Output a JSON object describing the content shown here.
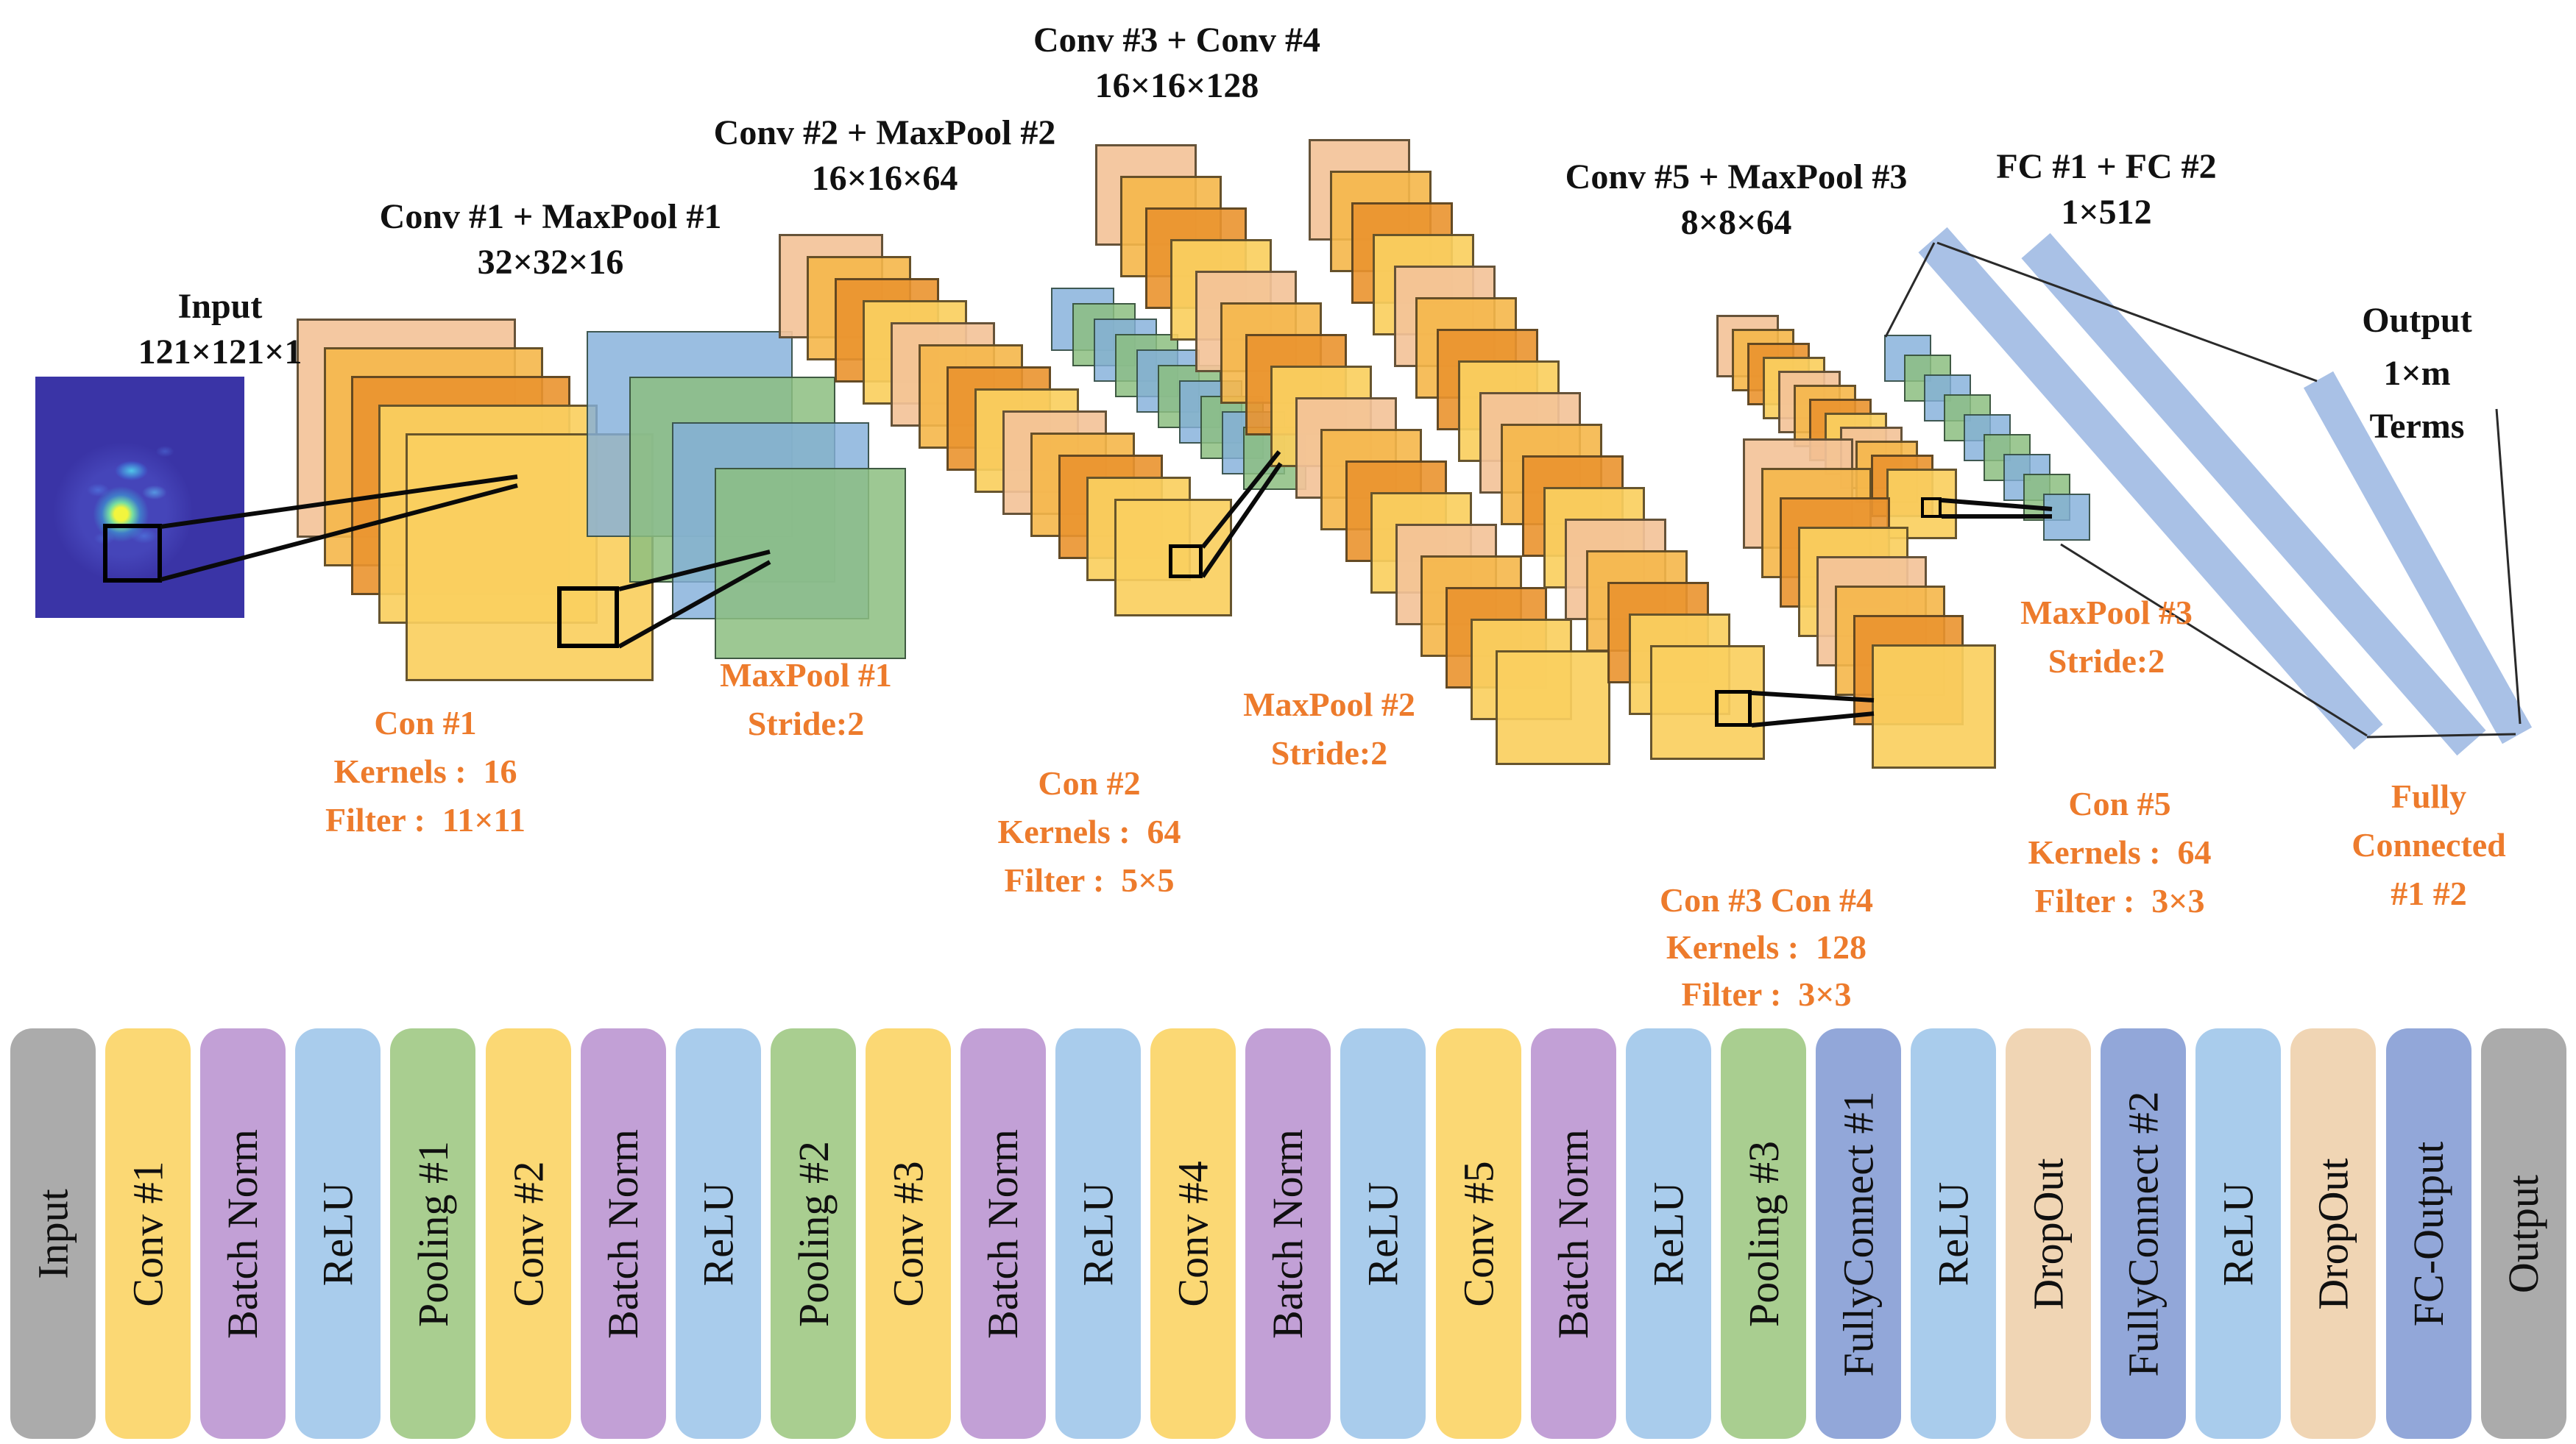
{
  "diagram": {
    "input": {
      "title": "Input",
      "dims": "121×121×1"
    },
    "output": {
      "lines": [
        "Output",
        "1×m",
        "Terms"
      ]
    },
    "stages": [
      {
        "line1": "Conv #1 + MaxPool #1",
        "line2": "32×32×16"
      },
      {
        "line1": "Conv #2 + MaxPool #2",
        "line2": "16×16×64"
      },
      {
        "line1": "Conv #3 + Conv #4",
        "line2": "16×16×128"
      },
      {
        "line1": "Conv #5 + MaxPool #3",
        "line2": "8×8×64"
      },
      {
        "line1": "FC #1 + FC #2",
        "line2": "1×512"
      }
    ],
    "annotations": [
      {
        "lines": [
          "Con #1",
          "Kernels :  16",
          "Filter :  11×11"
        ]
      },
      {
        "lines": [
          "MaxPool #1",
          "Stride:2"
        ]
      },
      {
        "lines": [
          "Con #2",
          "Kernels :  64",
          "Filter :  5×5"
        ]
      },
      {
        "lines": [
          "MaxPool #2",
          "Stride:2"
        ]
      },
      {
        "lines": [
          "Con #3 Con #4",
          "Kernels :  128",
          "Filter :  3×3"
        ]
      },
      {
        "lines": [
          "MaxPool #3",
          "Stride:2"
        ]
      },
      {
        "lines": [
          "Con #5",
          "Kernels :  64",
          "Filter :  3×3"
        ]
      },
      {
        "lines": [
          "Fully",
          "Connected",
          "#1 #2"
        ]
      }
    ]
  },
  "pipeline": {
    "items": [
      {
        "label": "Input",
        "type": "gray"
      },
      {
        "label": "Conv #1",
        "type": "yellow"
      },
      {
        "label": "Batch Norm",
        "type": "purple"
      },
      {
        "label": "ReLU",
        "type": "blue"
      },
      {
        "label": "Pooling #1",
        "type": "green"
      },
      {
        "label": "Conv #2",
        "type": "yellow"
      },
      {
        "label": "Batch Norm",
        "type": "purple"
      },
      {
        "label": "ReLU",
        "type": "blue"
      },
      {
        "label": "Pooling #2",
        "type": "green"
      },
      {
        "label": "Conv #3",
        "type": "yellow"
      },
      {
        "label": "Batch Norm",
        "type": "purple"
      },
      {
        "label": "ReLU",
        "type": "blue"
      },
      {
        "label": "Conv #4",
        "type": "yellow"
      },
      {
        "label": "Batch Norm",
        "type": "purple"
      },
      {
        "label": "ReLU",
        "type": "blue"
      },
      {
        "label": "Conv #5",
        "type": "yellow"
      },
      {
        "label": "Batch Norm",
        "type": "purple"
      },
      {
        "label": "ReLU",
        "type": "blue"
      },
      {
        "label": "Pooling #3",
        "type": "green"
      },
      {
        "label": "FullyConnect #1",
        "type": "fc"
      },
      {
        "label": "ReLU",
        "type": "blue"
      },
      {
        "label": "DropOut",
        "type": "tan"
      },
      {
        "label": "FullyConnect #2",
        "type": "fc"
      },
      {
        "label": "ReLU",
        "type": "blue"
      },
      {
        "label": "DropOut",
        "type": "tan"
      },
      {
        "label": "FC-Output",
        "type": "fc"
      },
      {
        "label": "Output",
        "type": "gray"
      }
    ]
  },
  "colors": {
    "annotation_orange": "#ED7B2C",
    "heading_black": "#111111",
    "block_yellow": "#FBD874",
    "block_purple": "#C2A0D6",
    "block_blue": "#A9CCEC",
    "block_green": "#A9CE90",
    "block_fc": "#92A7D9",
    "block_tan": "#F0D5B4",
    "block_gray": "#ABABAB",
    "map_peach": "rgba(243,195,153,0.92)",
    "map_gold": "rgba(245,183,74,0.9)",
    "map_orange": "rgba(234,148,47,0.9)",
    "map_gold_bright": "rgba(250,207,95,0.92)",
    "pool_blue": "rgba(132,176,219,0.82)",
    "pool_green": "rgba(140,190,128,0.85)",
    "fc_bar": "#A9C1E6",
    "input_bg": "#3A34A6"
  }
}
